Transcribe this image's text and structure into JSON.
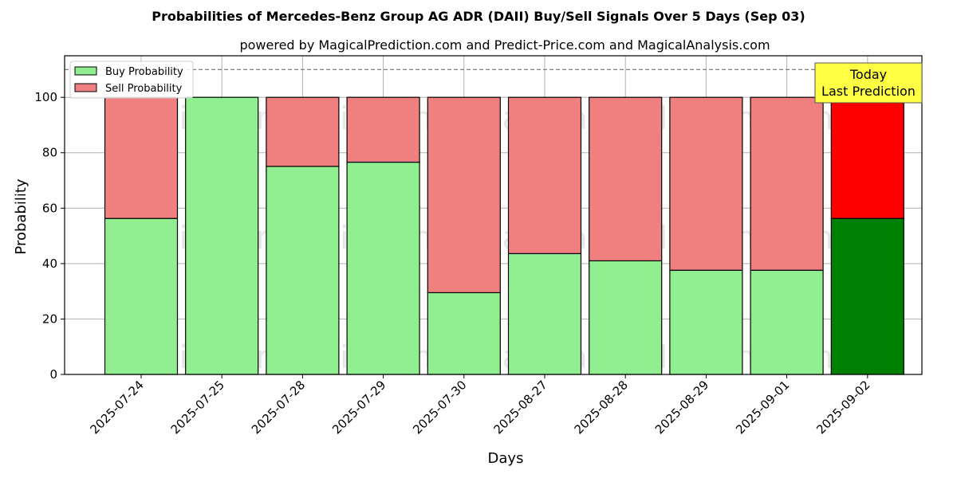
{
  "chart_data": {
    "type": "bar",
    "title": "Probabilities of Mercedes-Benz Group AG ADR (DAII) Buy/Sell Signals Over 5 Days (Sep 03)",
    "subtitle": "powered by MagicalPrediction.com and Predict-Price.com and MagicalAnalysis.com",
    "xlabel": "Days",
    "ylabel": "Probability",
    "stacked": true,
    "ylim": [
      0,
      115
    ],
    "yticks": [
      0,
      20,
      40,
      60,
      80,
      100
    ],
    "reference_line": 110,
    "grid": true,
    "legend_position": "top-left",
    "categories": [
      "2025-07-24",
      "2025-07-25",
      "2025-07-28",
      "2025-07-29",
      "2025-07-30",
      "2025-08-27",
      "2025-08-28",
      "2025-08-29",
      "2025-09-01",
      "2025-09-02"
    ],
    "series": [
      {
        "name": "Buy Probability",
        "color": "#90EE90",
        "values": [
          56.3,
          100,
          75.1,
          76.6,
          29.5,
          43.6,
          41.0,
          37.6,
          37.6,
          56.3
        ]
      },
      {
        "name": "Sell Probability",
        "color": "#F08080",
        "values": [
          43.7,
          0,
          24.9,
          23.4,
          70.5,
          56.4,
          59.0,
          62.4,
          62.4,
          43.7
        ]
      }
    ],
    "highlight": {
      "index": 9,
      "buy_color": "#008000",
      "sell_color": "#FF0000"
    },
    "annotation": {
      "lines": [
        "Today",
        "Last Prediction"
      ],
      "background": "#FFFF44"
    },
    "watermarks": [
      "MagicalAnalysis.com",
      "MagicalPrediction.com"
    ]
  }
}
